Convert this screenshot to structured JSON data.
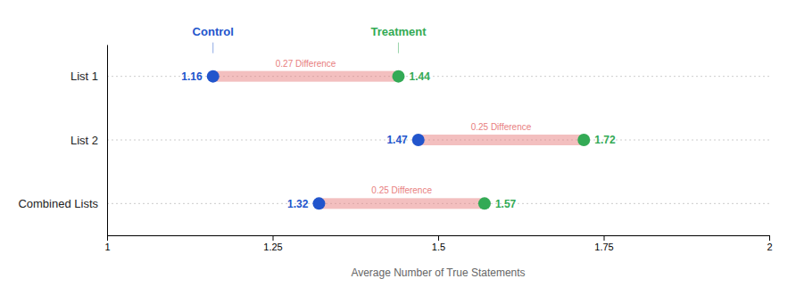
{
  "chart_data": {
    "type": "dumbbell",
    "orientation": "horizontal",
    "categories": [
      "List 1",
      "List 2",
      "Combined Lists"
    ],
    "series": [
      {
        "name": "Control",
        "color": "#2255cc",
        "values": [
          1.16,
          1.47,
          1.32
        ]
      },
      {
        "name": "Treatment",
        "color": "#33aa55",
        "values": [
          1.44,
          1.72,
          1.57
        ]
      }
    ],
    "color": "#e88080",
    "annotations": [
      "0.27 Difference",
      "0.25 Difference",
      "0.25 Difference"
    ],
    "xlabel": "Average Number of True Statements",
    "xlim": [
      1,
      2
    ],
    "xticks": [
      1,
      1.25,
      1.5,
      1.75,
      2
    ],
    "grid": true,
    "data_labels": true
  }
}
